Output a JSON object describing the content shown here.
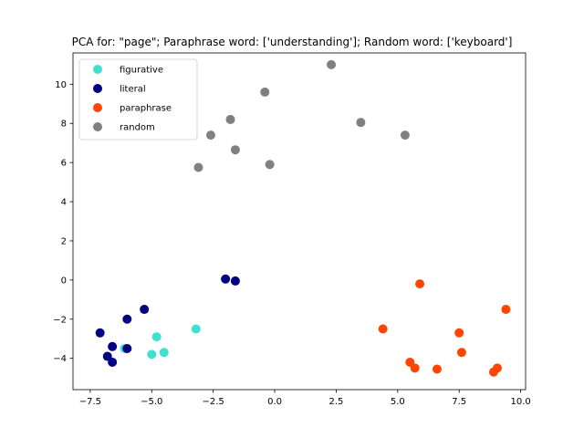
{
  "chart_data": {
    "type": "scatter",
    "title": "PCA for: \"page\"; Paraphrase word: ['understanding']; Random word: ['keyboard']",
    "xlabel": "",
    "ylabel": "",
    "xlim": [
      -8.2,
      10.2
    ],
    "ylim": [
      -5.6,
      11.6
    ],
    "xticks": [
      -7.5,
      -5.0,
      -2.5,
      0.0,
      2.5,
      5.0,
      7.5,
      10.0
    ],
    "xtick_labels": [
      "−7.5",
      "−5.0",
      "−2.5",
      "0.0",
      "2.5",
      "5.0",
      "7.5",
      "10.0"
    ],
    "yticks": [
      -4,
      -2,
      0,
      2,
      4,
      6,
      8,
      10
    ],
    "ytick_labels": [
      "−4",
      "−2",
      "0",
      "2",
      "4",
      "6",
      "8",
      "10"
    ],
    "grid": false,
    "legend_position": "upper-left",
    "series": [
      {
        "name": "figurative",
        "color": "#40e0d0",
        "points": [
          [
            -4.8,
            -2.9
          ],
          [
            -4.5,
            -3.7
          ],
          [
            -5.0,
            -3.8
          ],
          [
            -3.2,
            -2.5
          ],
          [
            -6.1,
            -3.5
          ]
        ]
      },
      {
        "name": "literal",
        "color": "#000080",
        "points": [
          [
            -7.1,
            -2.7
          ],
          [
            -6.6,
            -3.4
          ],
          [
            -6.0,
            -3.5
          ],
          [
            -6.0,
            -2.0
          ],
          [
            -5.3,
            -1.5
          ],
          [
            -6.8,
            -3.9
          ],
          [
            -6.6,
            -4.2
          ],
          [
            -2.0,
            0.05
          ],
          [
            -1.6,
            -0.05
          ]
        ]
      },
      {
        "name": "paraphrase",
        "color": "#ff4500",
        "points": [
          [
            4.4,
            -2.5
          ],
          [
            5.9,
            -0.2
          ],
          [
            5.5,
            -4.2
          ],
          [
            5.7,
            -4.5
          ],
          [
            6.6,
            -4.55
          ],
          [
            7.5,
            -2.7
          ],
          [
            7.6,
            -3.7
          ],
          [
            8.9,
            -4.7
          ],
          [
            9.05,
            -4.5
          ],
          [
            9.4,
            -1.5
          ]
        ]
      },
      {
        "name": "random",
        "color": "#808080",
        "points": [
          [
            2.3,
            11.0
          ],
          [
            -0.4,
            9.6
          ],
          [
            -1.8,
            8.2
          ],
          [
            -2.6,
            7.4
          ],
          [
            -1.6,
            6.65
          ],
          [
            -3.1,
            5.75
          ],
          [
            -0.2,
            5.9
          ],
          [
            3.5,
            8.05
          ],
          [
            5.3,
            7.4
          ]
        ]
      }
    ]
  }
}
